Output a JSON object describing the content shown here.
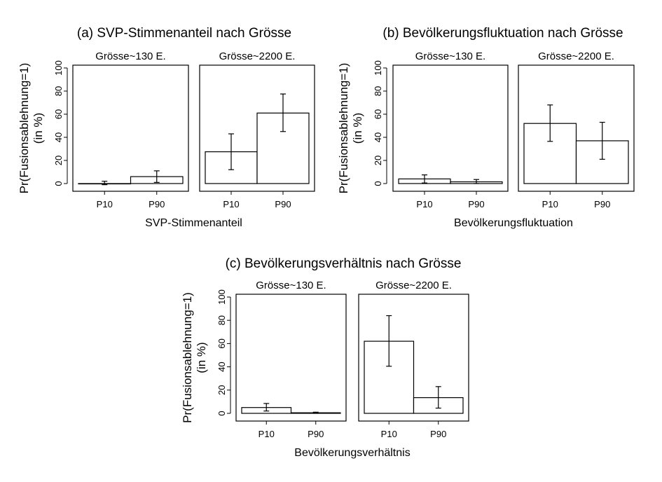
{
  "chart_data": [
    {
      "type": "bar",
      "title": "(a) SVP-Stimmenanteil nach Grösse",
      "ylabel": [
        "Pr(Fusionsablehnung=1)",
        "(in %)"
      ],
      "xlabel": "SVP-Stimmenanteil",
      "ylim": [
        0,
        100
      ],
      "yticks": [
        0,
        20,
        40,
        60,
        80,
        100
      ],
      "categories": [
        "P10",
        "P90"
      ],
      "panels": [
        {
          "title": "Grösse~130 E.",
          "values": [
            0,
            6
          ],
          "ci_low": [
            -1,
            1
          ],
          "ci_high": [
            2,
            11
          ]
        },
        {
          "title": "Grösse~2200 E.",
          "values": [
            27.5,
            61
          ],
          "ci_low": [
            12,
            45
          ],
          "ci_high": [
            43,
            77.5
          ]
        }
      ]
    },
    {
      "type": "bar",
      "title": "(b) Bevölkerungsfluktuation nach Grösse",
      "ylabel": [
        "Pr(Fusionsablehnung=1)",
        "(in %)"
      ],
      "xlabel": "Bevölkerungsfluktuation",
      "ylim": [
        0,
        100
      ],
      "yticks": [
        0,
        20,
        40,
        60,
        80,
        100
      ],
      "categories": [
        "P10",
        "P90"
      ],
      "panels": [
        {
          "title": "Grösse~130 E.",
          "values": [
            4,
            1.5
          ],
          "ci_low": [
            0.5,
            0
          ],
          "ci_high": [
            7.5,
            3.5
          ]
        },
        {
          "title": "Grösse~2200 E.",
          "values": [
            52,
            37
          ],
          "ci_low": [
            36.5,
            21
          ],
          "ci_high": [
            68,
            53
          ]
        }
      ]
    },
    {
      "type": "bar",
      "title": "(c) Bevölkerungsverhältnis nach Grösse",
      "ylabel": [
        "Pr(Fusionsablehnung=1)",
        "(in %)"
      ],
      "xlabel": "Bevölkerungsverhältnis",
      "ylim": [
        0,
        100
      ],
      "yticks": [
        0,
        20,
        40,
        60,
        80,
        100
      ],
      "categories": [
        "P10",
        "P90"
      ],
      "panels": [
        {
          "title": "Grösse~130 E.",
          "values": [
            5,
            0.5
          ],
          "ci_low": [
            2,
            0
          ],
          "ci_high": [
            8.5,
            1
          ]
        },
        {
          "title": "Grösse~2200 E.",
          "values": [
            62,
            13.5
          ],
          "ci_low": [
            40.5,
            4.5
          ],
          "ci_high": [
            84,
            23
          ]
        }
      ]
    }
  ]
}
